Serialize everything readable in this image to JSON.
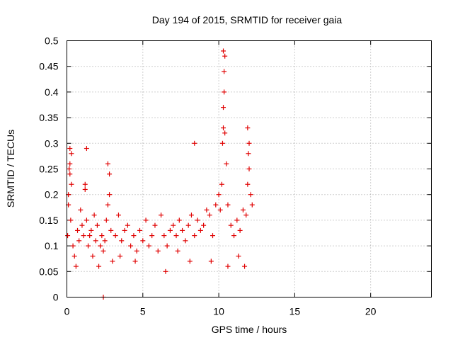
{
  "chart_data": {
    "type": "scatter",
    "title": "Day 194 of 2015, SRMTID for receiver gaia",
    "xlabel": "GPS time / hours",
    "ylabel": "SRMTID / TECUs",
    "xlim": [
      0,
      24
    ],
    "ylim": [
      0,
      0.5
    ],
    "xticks": [
      "0",
      "5",
      "10",
      "15",
      "20"
    ],
    "yticks": [
      "0",
      "0.05",
      "0.1",
      "0.15",
      "0.2",
      "0.25",
      "0.3",
      "0.35",
      "0.4",
      "0.45",
      "0.5"
    ],
    "grid": true,
    "marker": "plus",
    "color": "#e00000",
    "series": [
      {
        "x": [
          0.05,
          0.1,
          0.15,
          0.2,
          0.25,
          0.3,
          0.4,
          0.5,
          0.6,
          0.7,
          0.8,
          0.9,
          1.0,
          1.1,
          1.2,
          1.3,
          1.4,
          1.5,
          1.6,
          1.7,
          1.8,
          1.9,
          2.0,
          2.1,
          2.2,
          2.3,
          2.4,
          2.5,
          2.6,
          2.7,
          2.8,
          2.9,
          3.0,
          3.2,
          3.4,
          3.6,
          3.8,
          4.0,
          4.2,
          4.4,
          4.6,
          4.8,
          5.0,
          5.2,
          5.4,
          5.6,
          5.8,
          6.0,
          6.2,
          6.4,
          6.6,
          6.8,
          7.0,
          7.2,
          7.4,
          7.6,
          7.8,
          8.0,
          8.2,
          8.4,
          8.6,
          8.8,
          9.0,
          9.2,
          9.4,
          9.6,
          9.8,
          10.0,
          10.1,
          10.2,
          10.25,
          10.3,
          10.35,
          10.4,
          10.5,
          10.6,
          10.8,
          11.0,
          11.2,
          11.4,
          11.6,
          11.8,
          11.9,
          12.0,
          12.1,
          12.2,
          0.1,
          0.2,
          0.3,
          0.2,
          1.2,
          1.3,
          2.8,
          2.7,
          8.4,
          10.3,
          10.35,
          10.3,
          10.4,
          11.9,
          11.95,
          12.0,
          3.5,
          4.5,
          6.5,
          7.3,
          8.1,
          9.5,
          10.6,
          11.3,
          11.7,
          2.4
        ],
        "y": [
          0.12,
          0.18,
          0.25,
          0.29,
          0.15,
          0.22,
          0.1,
          0.08,
          0.06,
          0.13,
          0.11,
          0.17,
          0.14,
          0.12,
          0.21,
          0.15,
          0.1,
          0.12,
          0.13,
          0.08,
          0.16,
          0.11,
          0.14,
          0.06,
          0.1,
          0.12,
          0.09,
          0.11,
          0.15,
          0.18,
          0.2,
          0.13,
          0.07,
          0.12,
          0.16,
          0.11,
          0.13,
          0.14,
          0.1,
          0.12,
          0.09,
          0.13,
          0.11,
          0.15,
          0.1,
          0.12,
          0.14,
          0.09,
          0.16,
          0.12,
          0.1,
          0.13,
          0.14,
          0.12,
          0.15,
          0.13,
          0.11,
          0.14,
          0.16,
          0.12,
          0.15,
          0.13,
          0.14,
          0.17,
          0.16,
          0.12,
          0.18,
          0.2,
          0.17,
          0.22,
          0.3,
          0.33,
          0.4,
          0.47,
          0.26,
          0.18,
          0.14,
          0.12,
          0.15,
          0.13,
          0.17,
          0.16,
          0.22,
          0.3,
          0.2,
          0.18,
          0.2,
          0.26,
          0.28,
          0.24,
          0.22,
          0.29,
          0.24,
          0.26,
          0.3,
          0.37,
          0.44,
          0.48,
          0.32,
          0.33,
          0.28,
          0.25,
          0.08,
          0.07,
          0.05,
          0.09,
          0.07,
          0.07,
          0.06,
          0.08,
          0.06,
          0.0
        ]
      }
    ]
  }
}
